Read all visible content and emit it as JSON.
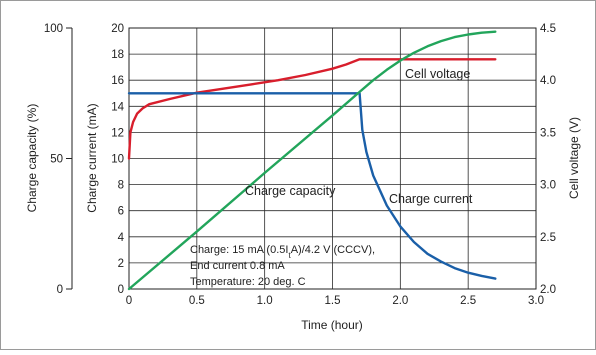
{
  "chart_data": {
    "type": "line",
    "xlabel": "Time (hour)",
    "x_ticks": [
      "0",
      "0.5",
      "1.0",
      "1.5",
      "2.0",
      "2.5",
      "3.0"
    ],
    "xlim": [
      0,
      3.0
    ],
    "grid": true,
    "axes": {
      "capacity": {
        "label": "Charge capacity (%)",
        "ylim": [
          0,
          100
        ],
        "ticks": [
          "0",
          "50",
          "100"
        ],
        "side": "outer-left"
      },
      "current": {
        "label": "Charge current (mA)",
        "ylim": [
          0,
          20
        ],
        "ticks": [
          "0",
          "2",
          "4",
          "6",
          "8",
          "10",
          "12",
          "14",
          "16",
          "18",
          "20"
        ],
        "side": "left"
      },
      "voltage": {
        "label": "Cell voltage (V)",
        "ylim": [
          2.0,
          4.5
        ],
        "ticks": [
          "2.0",
          "2.5",
          "3.0",
          "3.5",
          "4.0",
          "4.5"
        ],
        "side": "right"
      }
    },
    "series": [
      {
        "name": "Cell voltage",
        "axis": "voltage",
        "color": "#d81e2c",
        "x": [
          0,
          0.01,
          0.03,
          0.06,
          0.1,
          0.15,
          0.3,
          0.5,
          0.7,
          0.9,
          1.1,
          1.3,
          1.5,
          1.6,
          1.7,
          1.75,
          2.0,
          2.5,
          2.7
        ],
        "y": [
          3.25,
          3.5,
          3.6,
          3.68,
          3.73,
          3.77,
          3.82,
          3.88,
          3.92,
          3.96,
          4.0,
          4.05,
          4.11,
          4.15,
          4.2,
          4.2,
          4.2,
          4.2,
          4.2
        ]
      },
      {
        "name": "Charge current",
        "axis": "current",
        "color": "#1a5fa8",
        "x": [
          0,
          1.69,
          1.7,
          1.72,
          1.75,
          1.8,
          1.9,
          2.0,
          2.1,
          2.2,
          2.3,
          2.4,
          2.5,
          2.6,
          2.7
        ],
        "y": [
          15,
          15,
          15,
          12.2,
          10.5,
          8.7,
          6.4,
          4.8,
          3.6,
          2.7,
          2.1,
          1.6,
          1.25,
          1.0,
          0.8
        ]
      },
      {
        "name": "Charge capacity",
        "axis": "capacity",
        "color": "#22a55b",
        "x": [
          0,
          0.5,
          1.0,
          1.5,
          1.7,
          1.8,
          1.9,
          2.0,
          2.1,
          2.2,
          2.3,
          2.4,
          2.5,
          2.6,
          2.7
        ],
        "y": [
          0,
          22,
          44.5,
          66.5,
          75.5,
          80,
          84,
          87.5,
          90.5,
          93,
          95,
          96.5,
          97.5,
          98.2,
          98.6
        ]
      }
    ],
    "annotation": [
      "Charge: 15 mA (0.5ItA)/4.2 V (CCCV),",
      "End current 0.8 mA",
      "Temperature: 20 deg. C"
    ]
  }
}
